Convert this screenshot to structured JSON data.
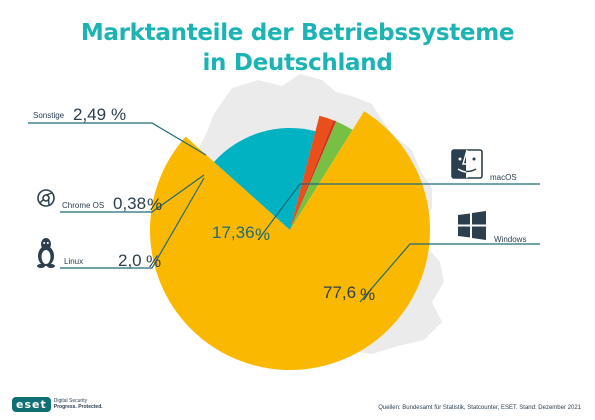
{
  "title": {
    "line1": "Marktanteile der Betriebssysteme",
    "line2": "in Deutschland"
  },
  "colors": {
    "title": "#1bb3b3",
    "background_map": "#ebebeb",
    "leader_line": "#1f6b78",
    "text": "#2b3f4f"
  },
  "chart_data": {
    "type": "pie",
    "title": "Marktanteile der Betriebssysteme in Deutschland",
    "slices": [
      {
        "name": "Windows",
        "value": 77.6,
        "display": "77,6",
        "pct_symbol": "%",
        "color": "#fbb800",
        "icon": "windows-logo-icon"
      },
      {
        "name": "macOS",
        "value": 17.36,
        "display": "17,36",
        "pct_symbol": "%",
        "color": "#00b2c2",
        "icon": "finder-face-icon"
      },
      {
        "name": "Linux",
        "value": 2.0,
        "display": "2,0",
        "pct_symbol": "%",
        "color": "#e94e1b",
        "icon": "tux-penguin-icon"
      },
      {
        "name": "Chrome OS",
        "value": 0.38,
        "display": "0,38",
        "pct_symbol": "%",
        "color": "#d6311f",
        "icon": "chrome-logo-icon"
      },
      {
        "name": "Sonstige",
        "value": 2.49,
        "display": "2,49",
        "pct_symbol": "%",
        "color": "#77c043",
        "icon": ""
      }
    ]
  },
  "source_text": "Quellen: Bundesamt für Statistik, Statcounter, ESET. Stand: Dezember 2021",
  "brand": {
    "mark": "eset",
    "tagline1": "Digital Security",
    "tagline2": "Progress. Protected."
  }
}
